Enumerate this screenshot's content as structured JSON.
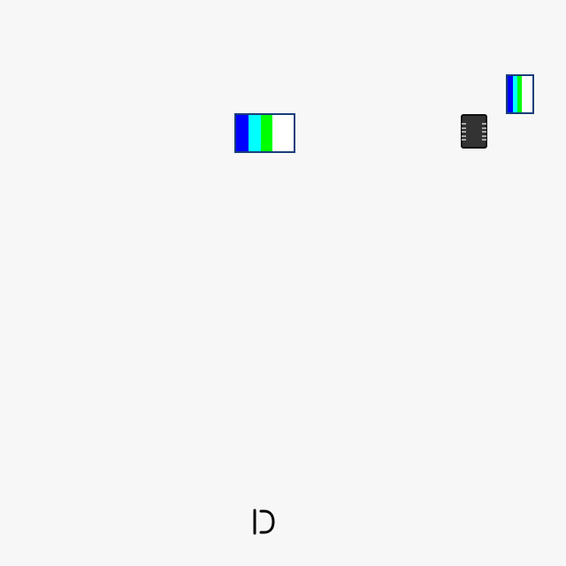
{
  "canvas": {
    "background": "#f7f7f7"
  },
  "elements": {
    "block_main": {
      "name": "striped-block",
      "stripe_colors": [
        "#0000ff",
        "#00ffff",
        "#00ff00",
        "#ffffff"
      ],
      "border_color": "#1a3f7a"
    },
    "block_small": {
      "name": "striped-block-small",
      "stripe_colors": [
        "#0000ff",
        "#00ffff",
        "#00ff00",
        "#ffffff"
      ],
      "border_color": "#1a3f7a"
    },
    "chip": {
      "icon": "chip-icon",
      "color": "#333333"
    },
    "glyph": {
      "icon": "bracket-d-glyph-icon",
      "color": "#000000"
    }
  }
}
